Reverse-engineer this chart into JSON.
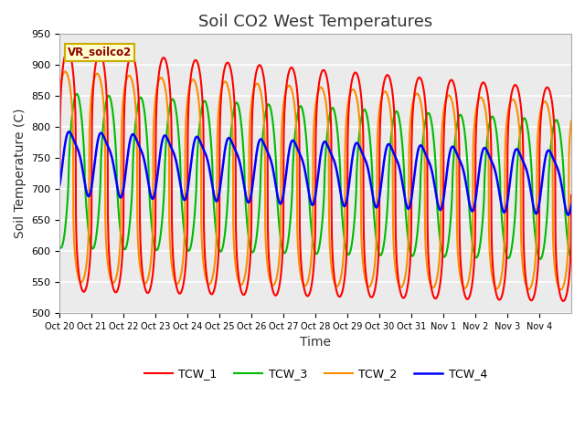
{
  "title": "Soil CO2 West Temperatures",
  "xlabel": "Time",
  "ylabel": "Soil Temperature (C)",
  "ylim": [
    500,
    950
  ],
  "yticks": [
    500,
    550,
    600,
    650,
    700,
    750,
    800,
    850,
    900,
    950
  ],
  "x_labels": [
    "Oct 20",
    "Oct 21",
    "Oct 22",
    "Oct 23",
    "Oct 24",
    "Oct 25",
    "Oct 26",
    "Oct 27",
    "Oct 28",
    "Oct 29",
    "Oct 30",
    "Oct 31",
    "Nov 1",
    "Nov 2",
    "Nov 3",
    "Nov 4"
  ],
  "annotation": "VR_soilco2",
  "colors": {
    "TCW_1": "#ff0000",
    "TCW_2": "#ff8c00",
    "TCW_3": "#00bb00",
    "TCW_4": "#0000ff"
  },
  "plot_bg": "#ebebeb",
  "grid_color": "#ffffff",
  "legend_entries": [
    "TCW_1",
    "TCW_2",
    "TCW_3",
    "TCW_4"
  ],
  "title_fontsize": 13,
  "axis_label_fontsize": 10
}
